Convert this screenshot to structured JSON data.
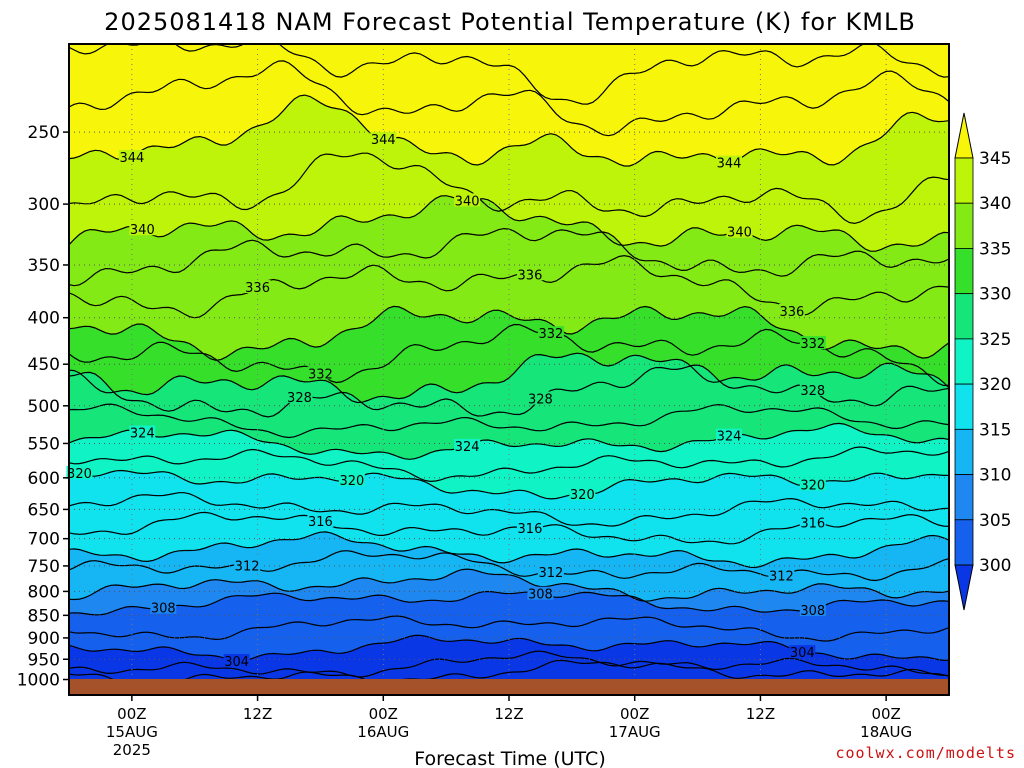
{
  "chart_data": {
    "type": "heatmap",
    "title": "2025081418 NAM Forecast Potential Temperature (K) for KMLB",
    "xlabel": "Forecast Time (UTC)",
    "ylabel": "",
    "y_log_scale": true,
    "y_reversed": true,
    "grid": "dotted",
    "y_ticks": [
      250,
      300,
      350,
      400,
      450,
      500,
      550,
      600,
      650,
      700,
      750,
      800,
      850,
      900,
      950,
      1000
    ],
    "ylim": [
      200,
      1025
    ],
    "x_ticks": [
      {
        "label": "00Z",
        "line2": "15AUG",
        "line3": "2025",
        "hour": 0
      },
      {
        "label": "12Z",
        "line2": "",
        "line3": "",
        "hour": 12
      },
      {
        "label": "00Z",
        "line2": "16AUG",
        "line3": "",
        "hour": 24
      },
      {
        "label": "12Z",
        "line2": "",
        "line3": "",
        "hour": 36
      },
      {
        "label": "00Z",
        "line2": "17AUG",
        "line3": "",
        "hour": 48
      },
      {
        "label": "12Z",
        "line2": "",
        "line3": "",
        "hour": 60
      },
      {
        "label": "00Z",
        "line2": "18AUG",
        "line3": "",
        "hour": 72
      }
    ],
    "xlim": [
      -6,
      78
    ],
    "colorbar": {
      "labels": [
        "300",
        "305",
        "310",
        "315",
        "320",
        "325",
        "330",
        "335",
        "340",
        "345"
      ],
      "colors": [
        "#0a37e6",
        "#1560ec",
        "#1e88f0",
        "#16b5f3",
        "#10e2ee",
        "#10f3c4",
        "#16e67a",
        "#35df2a",
        "#83ea16",
        "#bdf40a",
        "#f7f50a"
      ]
    },
    "fill_levels": [
      302.5,
      305,
      307.5,
      310,
      315,
      320,
      325,
      330,
      335,
      340,
      345
    ],
    "fill_colors": [
      "#0a37e6",
      "#1560ec",
      "#1e88f0",
      "#16b5f3",
      "#10e2ee",
      "#10f3c4",
      "#16e67a",
      "#35df2a",
      "#83ea16",
      "#bdf40a",
      "#f7f50a"
    ],
    "isentropes": [
      {
        "theta": 302,
        "p": 985,
        "labels": []
      },
      {
        "theta": 303,
        "p": 965,
        "labels": []
      },
      {
        "theta": 304,
        "p": 922,
        "labels": [
          {
            "hour": 10,
            "text": "304"
          },
          {
            "hour": 64,
            "text": "304"
          }
        ]
      },
      {
        "theta": 306,
        "p": 875,
        "labels": []
      },
      {
        "theta": 308,
        "p": 820,
        "labels": [
          {
            "hour": 3,
            "text": "308"
          },
          {
            "hour": 39,
            "text": "308"
          },
          {
            "hour": 65,
            "text": "308"
          }
        ]
      },
      {
        "theta": 310,
        "p": 790,
        "labels": []
      },
      {
        "theta": 312,
        "p": 752,
        "labels": [
          {
            "hour": 11,
            "text": "312"
          },
          {
            "hour": 40,
            "text": "312"
          },
          {
            "hour": 62,
            "text": "312"
          }
        ]
      },
      {
        "theta": 314,
        "p": 723,
        "labels": []
      },
      {
        "theta": 316,
        "p": 683,
        "labels": [
          {
            "hour": 18,
            "text": "316"
          },
          {
            "hour": 38,
            "text": "316"
          },
          {
            "hour": 65,
            "text": "316"
          }
        ]
      },
      {
        "theta": 318,
        "p": 650,
        "labels": []
      },
      {
        "theta": 320,
        "p": 606,
        "labels": [
          {
            "hour": -5,
            "text": "320"
          },
          {
            "hour": 21,
            "text": "320"
          },
          {
            "hour": 43,
            "text": "320"
          },
          {
            "hour": 65,
            "text": "320"
          }
        ]
      },
      {
        "theta": 322,
        "p": 578,
        "labels": []
      },
      {
        "theta": 324,
        "p": 549,
        "labels": [
          {
            "hour": 1,
            "text": "324"
          },
          {
            "hour": 32,
            "text": "324"
          },
          {
            "hour": 57,
            "text": "324"
          }
        ]
      },
      {
        "theta": 326,
        "p": 520,
        "labels": []
      },
      {
        "theta": 328,
        "p": 487,
        "labels": [
          {
            "hour": 16,
            "text": "328"
          },
          {
            "hour": 39,
            "text": "328"
          },
          {
            "hour": 65,
            "text": "328"
          }
        ]
      },
      {
        "theta": 330,
        "p": 465,
        "labels": []
      },
      {
        "theta": 332,
        "p": 436,
        "labels": [
          {
            "hour": 18,
            "text": "332"
          },
          {
            "hour": 40,
            "text": "332"
          },
          {
            "hour": 65,
            "text": "332"
          }
        ]
      },
      {
        "theta": 334,
        "p": 410,
        "labels": []
      },
      {
        "theta": 336,
        "p": 368,
        "labels": [
          {
            "hour": 12,
            "text": "336"
          },
          {
            "hour": 38,
            "text": "336"
          },
          {
            "hour": 63,
            "text": "336"
          }
        ]
      },
      {
        "theta": 338,
        "p": 340,
        "labels": []
      },
      {
        "theta": 340,
        "p": 318,
        "labels": [
          {
            "hour": 1,
            "text": "340"
          },
          {
            "hour": 32,
            "text": "340"
          },
          {
            "hour": 58,
            "text": "340"
          }
        ]
      },
      {
        "theta": 342,
        "p": 292,
        "labels": []
      },
      {
        "theta": 344,
        "p": 258,
        "labels": [
          {
            "hour": 0,
            "text": "344"
          },
          {
            "hour": 24,
            "text": "344"
          },
          {
            "hour": 57,
            "text": "344"
          }
        ]
      },
      {
        "theta": 346,
        "p": 232,
        "labels": []
      },
      {
        "theta": 348,
        "p": 210,
        "labels": []
      }
    ],
    "ground_color": "#a5522a"
  },
  "credit": "coolwx.com/modelts"
}
